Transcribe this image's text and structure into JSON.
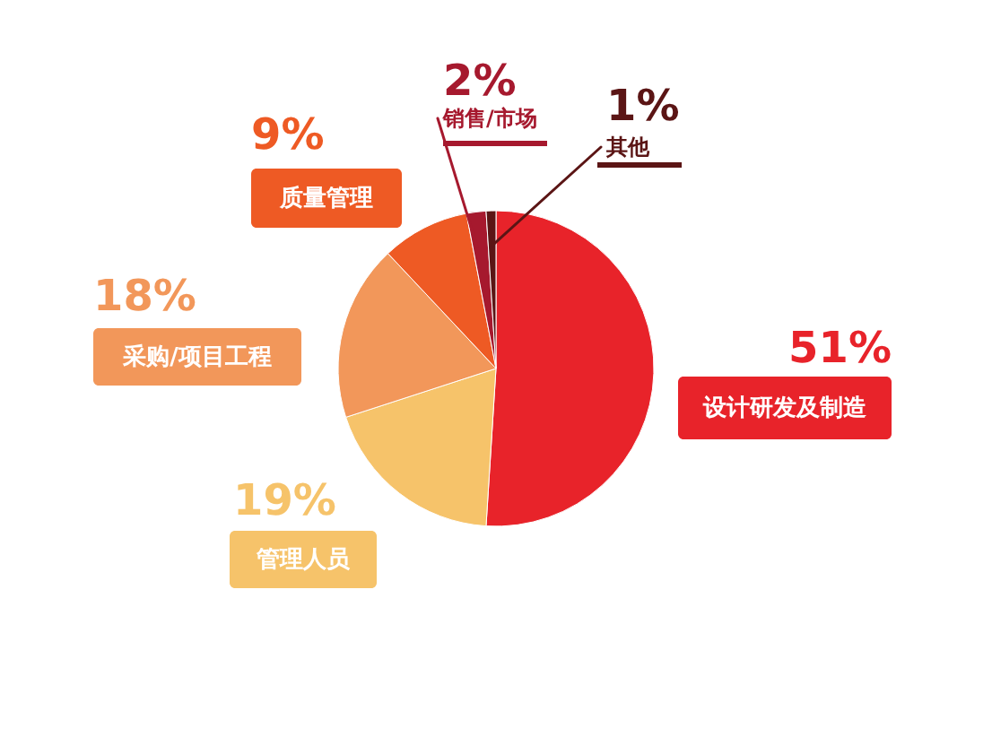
{
  "chart_data": {
    "type": "pie",
    "categories": [
      "设计研发及制造",
      "管理人员",
      "采购/项目工程",
      "质量管理",
      "销售/市场",
      "其他"
    ],
    "values": [
      51,
      19,
      18,
      9,
      2,
      1
    ],
    "colors": [
      "#e8232a",
      "#f6c36a",
      "#f2975a",
      "#ee5a24",
      "#a6192e",
      "#5b1515"
    ],
    "value_labels": [
      "51%",
      "19%",
      "18%",
      "9%",
      "2%",
      "1%"
    ]
  }
}
